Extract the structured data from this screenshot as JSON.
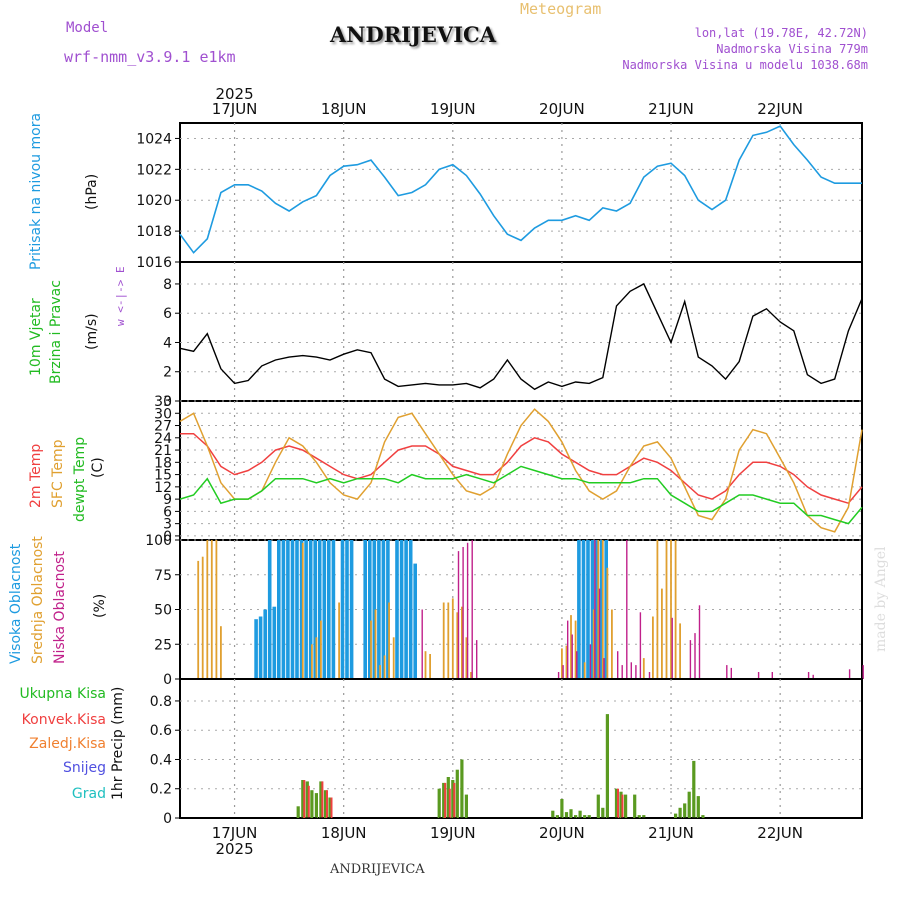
{
  "header": {
    "model_label": "Model",
    "model_name": "wrf-nmm_v3.9.1  e1km",
    "station_title": "ANDRIJEVICA",
    "chart_kind": "Meteogram",
    "lonlat": "lon,lat (19.78E, 42.72N)",
    "elevation": "Nadmorska Visina 779m",
    "model_elevation": "Nadmorska Visina u modelu 1038.68m"
  },
  "footer": {
    "station": "ANDRIJEVICA",
    "credit": "made by Angel"
  },
  "time_axis": {
    "year": "2025",
    "days": [
      "17JUN",
      "18JUN",
      "19JUN",
      "20JUN",
      "21JUN",
      "22JUN"
    ]
  },
  "panels": {
    "pressure": {
      "title": "Pritisak na nivou mora",
      "unit": "(hPa)"
    },
    "wind": {
      "title1": "10m Vjetar",
      "title2": "Brzina i Pravac",
      "unit": "(m/s)",
      "compass": "w <-|-> E"
    },
    "temp": {
      "series1": "2m Temp",
      "series2": "SFC Temp",
      "series3": "dewpt Temp",
      "unit": "(C)"
    },
    "cloud": {
      "series1": "Visoka Oblacnost",
      "series2": "Srednja Oblacnost",
      "series3": "Niska Oblacnost",
      "unit": "(%)"
    },
    "precip": {
      "series1": "Ukupna Kisa",
      "series2": "Konvek.Kisa",
      "series3": "Zaledj.Kisa",
      "series4": "Snijeg",
      "series5": "Grad",
      "unit": "1hr Precip (mm)"
    }
  },
  "colors": {
    "pressure": "#1e9be0",
    "temp2m": "#f04040",
    "sfc": "#e0a030",
    "dewpt": "#22cc22",
    "wind": "#000000",
    "high_cloud": "#1e9be0",
    "mid_cloud": "#e0a030",
    "low_cloud": "#c0208a",
    "total_precip": "#5a9a20",
    "conv_precip": "#f04040",
    "freez_precip": "#f08030",
    "snow": "#5050e0",
    "hail": "#20c0c0",
    "purple_text": "#a050d0"
  },
  "chart_data": [
    {
      "type": "line",
      "panel": "pressure",
      "x_hours": [
        0,
        3,
        6,
        9,
        12,
        15,
        18,
        21,
        24,
        27,
        30,
        33,
        36,
        39,
        42,
        45,
        48,
        51,
        54,
        57,
        60,
        63,
        66,
        69,
        72,
        75,
        78,
        81,
        84,
        87,
        90,
        93,
        96,
        99,
        102,
        105,
        108,
        111,
        114,
        117,
        120,
        123,
        126,
        129,
        132,
        135,
        138,
        141,
        144,
        147,
        150
      ],
      "values": [
        1017.8,
        1016.6,
        1017.5,
        1020.5,
        1021,
        1021,
        1020.6,
        1019.8,
        1019.3,
        1019.9,
        1020.3,
        1021.6,
        1022.2,
        1022.3,
        1022.6,
        1021.5,
        1020.3,
        1020.5,
        1021,
        1022,
        1022.3,
        1021.6,
        1020.4,
        1019,
        1017.8,
        1017.4,
        1018.2,
        1018.7,
        1018.7,
        1019,
        1018.7,
        1019.5,
        1019.3,
        1019.8,
        1021.5,
        1022.2,
        1022.4,
        1021.6,
        1020,
        1019.4,
        1020,
        1022.6,
        1024.2,
        1024.4,
        1024.8,
        1023.6,
        1022.6,
        1021.5,
        1021.1,
        1021.1,
        1021.1
      ],
      "ylim": [
        1016,
        1025
      ],
      "yticks": [
        1016,
        1018,
        1020,
        1022,
        1024
      ]
    },
    {
      "type": "line",
      "panel": "wind",
      "x_hours": [
        0,
        3,
        6,
        9,
        12,
        15,
        18,
        21,
        24,
        27,
        30,
        33,
        36,
        39,
        42,
        45,
        48,
        51,
        54,
        57,
        60,
        63,
        66,
        69,
        72,
        75,
        78,
        81,
        84,
        87,
        90,
        93,
        96,
        99,
        102,
        105,
        108,
        111,
        114,
        117,
        120,
        123,
        126,
        129,
        132,
        135,
        138,
        141,
        144,
        147,
        150
      ],
      "values": [
        3.6,
        3.4,
        4.6,
        2.2,
        1.2,
        1.4,
        2.4,
        2.8,
        3,
        3.1,
        3,
        2.8,
        3.2,
        3.5,
        3.3,
        1.5,
        1,
        1.1,
        1.2,
        1.1,
        1.1,
        1.2,
        0.9,
        1.5,
        2.8,
        1.5,
        0.8,
        1.3,
        1,
        1.3,
        1.2,
        1.6,
        6.5,
        7.5,
        8,
        6,
        4,
        6.8,
        3,
        2.4,
        1.5,
        2.7,
        5.8,
        6.3,
        5.4,
        4.8,
        1.8,
        1.2,
        1.5,
        4.8,
        7
      ],
      "ylim": [
        0,
        9.5
      ],
      "yticks": [
        0,
        2,
        4,
        6,
        8
      ]
    },
    {
      "type": "line",
      "panel": "temp",
      "x_hours": [
        0,
        3,
        6,
        9,
        12,
        15,
        18,
        21,
        24,
        27,
        30,
        33,
        36,
        39,
        42,
        45,
        48,
        51,
        54,
        57,
        60,
        63,
        66,
        69,
        72,
        75,
        78,
        81,
        84,
        87,
        90,
        93,
        96,
        99,
        102,
        105,
        108,
        111,
        114,
        117,
        120,
        123,
        126,
        129,
        132,
        135,
        138,
        141,
        144,
        147,
        150
      ],
      "series": [
        {
          "name": "2m Temp",
          "values": [
            25,
            25,
            22,
            17,
            15,
            16,
            18,
            21,
            22,
            21,
            19,
            17,
            15,
            14,
            15,
            18,
            21,
            22,
            22,
            20,
            17,
            16,
            15,
            15,
            18,
            22,
            24,
            23,
            20,
            18,
            16,
            15,
            15,
            17,
            19,
            18,
            16,
            13,
            10,
            9,
            11,
            15,
            18,
            18,
            17,
            15,
            12,
            10,
            9,
            8,
            12
          ]
        },
        {
          "name": "SFC Temp",
          "values": [
            28,
            30,
            22,
            13,
            9,
            9,
            11,
            18,
            24,
            22,
            18,
            13,
            10,
            9,
            13,
            23,
            29,
            30,
            25,
            20,
            15,
            11,
            10,
            12,
            20,
            27,
            31,
            28,
            23,
            16,
            11,
            9,
            11,
            17,
            22,
            23,
            19,
            12,
            5,
            4,
            9,
            21,
            26,
            25,
            19,
            13,
            5,
            2,
            1,
            7,
            26
          ]
        },
        {
          "name": "dewpt Temp",
          "values": [
            9,
            10,
            14,
            8,
            9,
            9,
            11,
            14,
            14,
            14,
            13,
            14,
            13,
            14,
            14,
            14,
            13,
            15,
            14,
            14,
            14,
            15,
            14,
            13,
            15,
            17,
            16,
            15,
            14,
            14,
            13,
            13,
            13,
            13,
            14,
            14,
            10,
            8,
            6,
            6,
            8,
            10,
            10,
            9,
            8,
            8,
            5,
            5,
            4,
            3,
            7
          ]
        }
      ],
      "ylim": [
        -1,
        33
      ],
      "yticks": [
        0,
        3,
        6,
        9,
        12,
        15,
        18,
        21,
        24,
        27,
        30,
        33
      ]
    },
    {
      "type": "bar",
      "panel": "cloud",
      "series": [
        {
          "name": "Visoka Oblacnost",
          "hours": [
            17,
            18,
            19,
            20,
            21,
            22,
            23,
            24,
            25,
            26,
            27,
            28,
            29,
            30,
            31,
            32,
            33,
            34,
            36,
            37,
            38,
            41,
            42,
            43,
            44,
            45,
            46,
            48,
            49,
            50,
            51,
            52,
            88,
            89,
            90,
            91,
            92,
            93,
            94
          ],
          "values": [
            43,
            45,
            50,
            100,
            52,
            100,
            100,
            100,
            100,
            100,
            100,
            100,
            100,
            100,
            100,
            100,
            100,
            100,
            100,
            100,
            100,
            100,
            100,
            100,
            100,
            100,
            100,
            100,
            100,
            100,
            100,
            83,
            100,
            100,
            100,
            100,
            100,
            100,
            100
          ]
        },
        {
          "name": "Srednja Oblacnost",
          "hours": [
            4,
            5,
            6,
            7,
            8,
            9,
            27,
            29,
            30,
            31,
            35,
            42,
            43,
            44,
            45,
            46,
            47,
            54,
            55,
            58,
            59,
            60,
            61,
            62,
            63,
            64,
            84,
            85,
            86,
            87,
            89,
            91,
            92,
            93,
            94,
            95,
            102,
            104,
            105,
            106,
            107,
            108,
            109,
            110
          ],
          "values": [
            85,
            88,
            100,
            100,
            100,
            38,
            98,
            25,
            30,
            42,
            55,
            42,
            50,
            10,
            17,
            55,
            30,
            20,
            18,
            55,
            55,
            58,
            48,
            52,
            30,
            5,
            22,
            24,
            46,
            42,
            12,
            50,
            100,
            100,
            80,
            50,
            15,
            45,
            100,
            65,
            100,
            100,
            100,
            40
          ]
        },
        {
          "name": "Niska Oblacnost",
          "hours": [
            53,
            61,
            62,
            63,
            64,
            65,
            83,
            84,
            85,
            86,
            87,
            90,
            91,
            92,
            93,
            96,
            97,
            98,
            99,
            100,
            101,
            103,
            108,
            112,
            113,
            114,
            120,
            121,
            127,
            130,
            138,
            139,
            147,
            150
          ],
          "values": [
            50,
            92,
            95,
            98,
            100,
            28,
            5,
            10,
            42,
            32,
            20,
            25,
            100,
            65,
            15,
            20,
            10,
            100,
            12,
            10,
            48,
            5,
            44,
            28,
            33,
            53,
            10,
            8,
            5,
            5,
            5,
            3,
            7,
            10
          ]
        }
      ],
      "ylim": [
        0,
        100
      ],
      "yticks": [
        0,
        25,
        50,
        75,
        100
      ]
    },
    {
      "type": "bar",
      "panel": "precip",
      "series": [
        {
          "name": "Ukupna Kisa",
          "hours": [
            26,
            27,
            28,
            29,
            30,
            31,
            32,
            33,
            57,
            58,
            59,
            60,
            61,
            62,
            63,
            82,
            83,
            84,
            85,
            86,
            87,
            88,
            89,
            90,
            92,
            93,
            94,
            96,
            97,
            98,
            100,
            101,
            102,
            109,
            110,
            111,
            112,
            113,
            114,
            115
          ],
          "values": [
            0.08,
            0.26,
            0.25,
            0.19,
            0.17,
            0.25,
            0.19,
            0.14,
            0.2,
            0.24,
            0.28,
            0.26,
            0.33,
            0.4,
            0.16,
            0.05,
            0.02,
            0.13,
            0.04,
            0.06,
            0.02,
            0.05,
            0.02,
            0.02,
            0.16,
            0.07,
            0.71,
            0.2,
            0.18,
            0.16,
            0.16,
            0.02,
            0.02,
            0.03,
            0.07,
            0.1,
            0.18,
            0.39,
            0.15,
            0.02
          ]
        },
        {
          "name": "Konvek.Kisa",
          "hours": [
            27,
            28,
            31,
            32,
            33,
            58,
            59,
            60,
            96,
            97
          ],
          "values": [
            0.26,
            0.22,
            0.25,
            0.19,
            0.14,
            0.24,
            0.2,
            0.24,
            0.2,
            0.16
          ]
        }
      ],
      "ylim": [
        0,
        0.95
      ],
      "yticks": [
        0,
        0.2,
        0.4,
        0.6,
        0.8
      ]
    }
  ]
}
